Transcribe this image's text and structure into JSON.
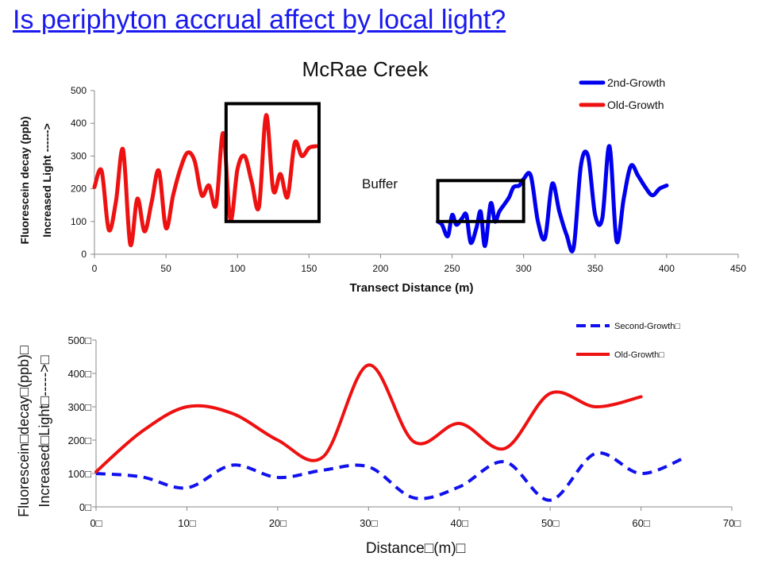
{
  "slide": {
    "title": "Is periphyton accrual affect by local light?"
  },
  "chart_data": [
    {
      "type": "line",
      "title": "McRae Creek",
      "xlabel": "Transect Distance (m)",
      "ylabel_lines": [
        "Fluorescein decay (ppb)",
        "Increased Light ------>"
      ],
      "xlim": [
        0,
        450
      ],
      "ylim": [
        0,
        500
      ],
      "xticks": [
        0,
        50,
        100,
        150,
        200,
        250,
        300,
        350,
        400,
        450
      ],
      "yticks": [
        0,
        100,
        200,
        300,
        400,
        500
      ],
      "grid": false,
      "legend_position": "top-right",
      "annotations": [
        {
          "text": "Buffer"
        }
      ],
      "highlight_boxes": [
        {
          "x_range": [
            92,
            157
          ],
          "y_range": [
            100,
            460
          ]
        },
        {
          "x_range": [
            240,
            300
          ],
          "y_range": [
            100,
            225
          ]
        }
      ],
      "series": [
        {
          "name": "2nd-Growth",
          "color": "#0000ee",
          "x": [
            240,
            243,
            247,
            250,
            253,
            257,
            260,
            263,
            267,
            270,
            273,
            277,
            280,
            283,
            287,
            290,
            293,
            297,
            300,
            305,
            310,
            315,
            320,
            325,
            330,
            335,
            340,
            345,
            350,
            355,
            360,
            365,
            370,
            375,
            380,
            385,
            390,
            395,
            400
          ],
          "y": [
            100,
            90,
            55,
            120,
            90,
            110,
            120,
            35,
            80,
            130,
            25,
            155,
            100,
            130,
            155,
            175,
            205,
            210,
            230,
            240,
            100,
            50,
            215,
            130,
            60,
            20,
            270,
            300,
            120,
            110,
            330,
            40,
            170,
            270,
            240,
            205,
            180,
            200,
            210
          ]
        },
        {
          "name": "Old-Growth",
          "color": "#ee1111",
          "x": [
            0,
            5,
            10,
            15,
            20,
            25,
            30,
            35,
            40,
            45,
            50,
            55,
            60,
            65,
            70,
            75,
            80,
            85,
            90,
            95,
            100,
            105,
            110,
            115,
            120,
            125,
            130,
            135,
            140,
            145,
            150,
            155
          ],
          "y": [
            205,
            255,
            75,
            160,
            320,
            30,
            170,
            70,
            160,
            255,
            80,
            180,
            260,
            310,
            285,
            180,
            210,
            150,
            370,
            105,
            260,
            300,
            220,
            145,
            425,
            195,
            245,
            175,
            340,
            300,
            325,
            330
          ]
        }
      ]
    },
    {
      "type": "line",
      "title": "",
      "xlabel": "Distance□(m)□",
      "ylabel_lines": [
        "Fluorescein□decay□(ppb)□",
        "Increased□Light□----->□"
      ],
      "xlim": [
        0,
        70
      ],
      "ylim": [
        0,
        500
      ],
      "xticks": [
        "0□",
        "10□",
        "20□",
        "30□",
        "40□",
        "50□",
        "60□",
        "70□"
      ],
      "yticks": [
        "0□",
        "100□",
        "200□",
        "300□",
        "400□",
        "500□"
      ],
      "grid": false,
      "legend_position": "top-right",
      "series": [
        {
          "name": "Second-Growth□",
          "color": "#1111ee",
          "dashed": true,
          "x": [
            0,
            5,
            10,
            15,
            20,
            25,
            30,
            35,
            40,
            45,
            50,
            55,
            60,
            65
          ],
          "y": [
            100,
            90,
            57,
            125,
            88,
            110,
            120,
            27,
            60,
            135,
            20,
            160,
            100,
            150
          ]
        },
        {
          "name": "Old-Growth□",
          "color": "#ee1111",
          "dashed": false,
          "x": [
            0,
            5,
            10,
            15,
            20,
            25,
            30,
            35,
            40,
            45,
            50,
            55,
            60
          ],
          "y": [
            105,
            225,
            300,
            280,
            200,
            150,
            425,
            195,
            250,
            175,
            340,
            300,
            330
          ]
        }
      ]
    }
  ]
}
